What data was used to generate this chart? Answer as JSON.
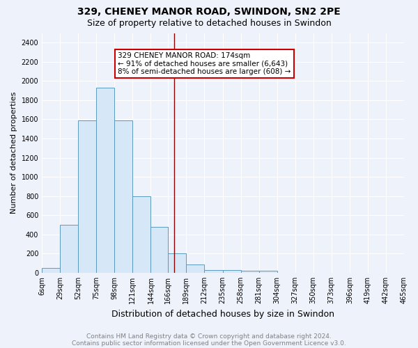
{
  "title": "329, CHENEY MANOR ROAD, SWINDON, SN2 2PE",
  "subtitle": "Size of property relative to detached houses in Swindon",
  "xlabel": "Distribution of detached houses by size in Swindon",
  "ylabel": "Number of detached properties",
  "bin_edges": [
    6,
    29,
    52,
    75,
    98,
    121,
    144,
    166,
    189,
    212,
    235,
    258,
    281,
    304,
    327,
    350,
    373,
    396,
    419,
    442,
    465
  ],
  "bin_counts": [
    50,
    500,
    1590,
    1930,
    1590,
    800,
    480,
    200,
    90,
    30,
    25,
    20,
    20,
    0,
    0,
    0,
    0,
    0,
    0,
    0
  ],
  "bar_color": "#d6e8f7",
  "bar_edge_color": "#5b9abf",
  "vline_x": 174,
  "vline_color": "#8b0000",
  "annotation_text": "329 CHENEY MANOR ROAD: 174sqm\n← 91% of detached houses are smaller (6,643)\n8% of semi-detached houses are larger (608) →",
  "annotation_box_color": "#ffffff",
  "annotation_box_edge": "#cc0000",
  "ylim": [
    0,
    2500
  ],
  "yticks": [
    0,
    200,
    400,
    600,
    800,
    1000,
    1200,
    1400,
    1600,
    1800,
    2000,
    2200,
    2400
  ],
  "background_color": "#eef2fb",
  "grid_color": "#ffffff",
  "footer_line1": "Contains HM Land Registry data © Crown copyright and database right 2024.",
  "footer_line2": "Contains public sector information licensed under the Open Government Licence v3.0.",
  "title_fontsize": 10,
  "subtitle_fontsize": 9,
  "xlabel_fontsize": 9,
  "ylabel_fontsize": 8,
  "tick_fontsize": 7,
  "footer_fontsize": 6.5,
  "annotation_fontsize": 7.5
}
